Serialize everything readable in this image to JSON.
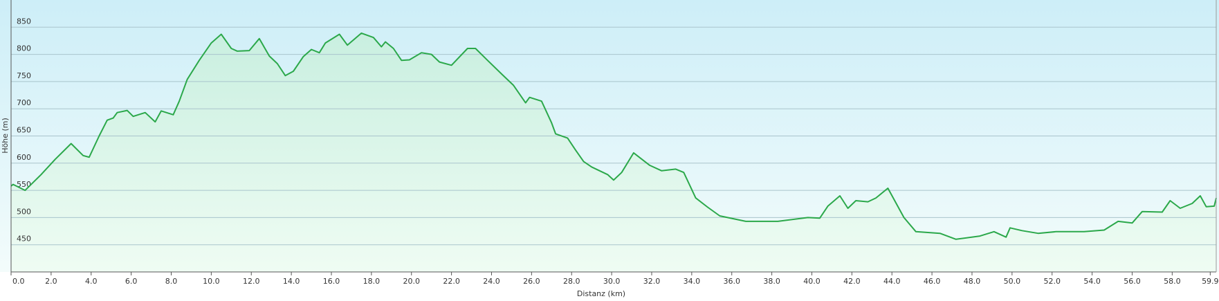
{
  "chart_data": {
    "type": "area",
    "x_label": "Distanz  (km)",
    "y_label": "Höhe (m)",
    "color": "#2ba84a",
    "grid": true,
    "xlim": [
      0,
      60.2
    ],
    "ylim": [
      400,
      900
    ],
    "yticks": [
      450,
      500,
      550,
      600,
      650,
      700,
      750,
      800,
      850
    ],
    "xticks": [
      {
        "value": 0,
        "label": "0.0"
      },
      {
        "value": 2,
        "label": "2.0"
      },
      {
        "value": 4,
        "label": "4.0"
      },
      {
        "value": 6,
        "label": "6.0"
      },
      {
        "value": 8,
        "label": "8.0"
      },
      {
        "value": 10,
        "label": "10.0"
      },
      {
        "value": 12,
        "label": "12.0"
      },
      {
        "value": 14,
        "label": "14.0"
      },
      {
        "value": 16,
        "label": "16.0"
      },
      {
        "value": 18,
        "label": "18.0"
      },
      {
        "value": 20,
        "label": "20.0"
      },
      {
        "value": 22,
        "label": "22.0"
      },
      {
        "value": 24,
        "label": "24.0"
      },
      {
        "value": 26,
        "label": "26.0"
      },
      {
        "value": 28,
        "label": "28.0"
      },
      {
        "value": 30,
        "label": "30.0"
      },
      {
        "value": 32,
        "label": "32.0"
      },
      {
        "value": 34,
        "label": "34.0"
      },
      {
        "value": 36,
        "label": "36.0"
      },
      {
        "value": 38,
        "label": "38.0"
      },
      {
        "value": 40,
        "label": "40.0"
      },
      {
        "value": 42,
        "label": "42.0"
      },
      {
        "value": 44,
        "label": "44.0"
      },
      {
        "value": 46,
        "label": "46.0"
      },
      {
        "value": 48,
        "label": "48.0"
      },
      {
        "value": 50,
        "label": "50.0"
      },
      {
        "value": 52,
        "label": "52.0"
      },
      {
        "value": 54,
        "label": "54.0"
      },
      {
        "value": 56,
        "label": "56.0"
      },
      {
        "value": 58,
        "label": "58.0"
      },
      59.9
    ],
    "x": [
      0,
      0.1,
      0.7,
      1.5,
      2.2,
      3.0,
      3.6,
      3.9,
      4.4,
      4.8,
      5.1,
      5.3,
      5.8,
      6.1,
      6.7,
      7.2,
      7.5,
      8.1,
      8.4,
      8.8,
      9.4,
      10.0,
      10.5,
      11.0,
      11.3,
      11.9,
      12.4,
      12.9,
      13.3,
      13.7,
      14.1,
      14.6,
      15.0,
      15.4,
      15.7,
      16.4,
      16.8,
      17.5,
      18.1,
      18.5,
      18.7,
      19.1,
      19.5,
      19.9,
      20.5,
      21.0,
      21.4,
      22.0,
      22.8,
      23.2,
      23.8,
      24.5,
      25.1,
      25.7,
      25.9,
      26.5,
      27.0,
      27.2,
      27.8,
      28.2,
      28.6,
      29.0,
      29.4,
      29.8,
      30.1,
      30.5,
      31.1,
      31.9,
      32.5,
      33.2,
      33.6,
      34.2,
      34.8,
      35.4,
      36.7,
      38.3,
      39.8,
      40.4,
      40.8,
      41.4,
      41.8,
      42.2,
      42.8,
      43.2,
      43.8,
      44.6,
      45.2,
      46.4,
      47.2,
      48.4,
      49.1,
      49.7,
      49.9,
      50.5,
      51.3,
      52.2,
      53.6,
      54.6,
      55.3,
      56.0,
      56.5,
      57.5,
      57.9,
      58.4,
      59.0,
      59.4,
      59.7,
      60.1,
      60.2
    ],
    "values": [
      558,
      561,
      550,
      579,
      607,
      636,
      614,
      611,
      650,
      679,
      683,
      693,
      697,
      686,
      693,
      676,
      696,
      689,
      714,
      754,
      789,
      821,
      837,
      811,
      806,
      807,
      829,
      797,
      783,
      761,
      769,
      796,
      809,
      803,
      821,
      837,
      817,
      839,
      831,
      814,
      823,
      811,
      789,
      790,
      803,
      800,
      786,
      780,
      811,
      811,
      789,
      764,
      743,
      711,
      721,
      714,
      674,
      654,
      646,
      624,
      603,
      593,
      586,
      579,
      569,
      583,
      619,
      596,
      586,
      589,
      583,
      536,
      519,
      503,
      493,
      493,
      500,
      499,
      521,
      540,
      517,
      531,
      529,
      536,
      554,
      500,
      474,
      471,
      460,
      466,
      474,
      464,
      481,
      476,
      471,
      474,
      474,
      477,
      493,
      490,
      511,
      510,
      531,
      517,
      526,
      540,
      520,
      521,
      536
    ]
  }
}
